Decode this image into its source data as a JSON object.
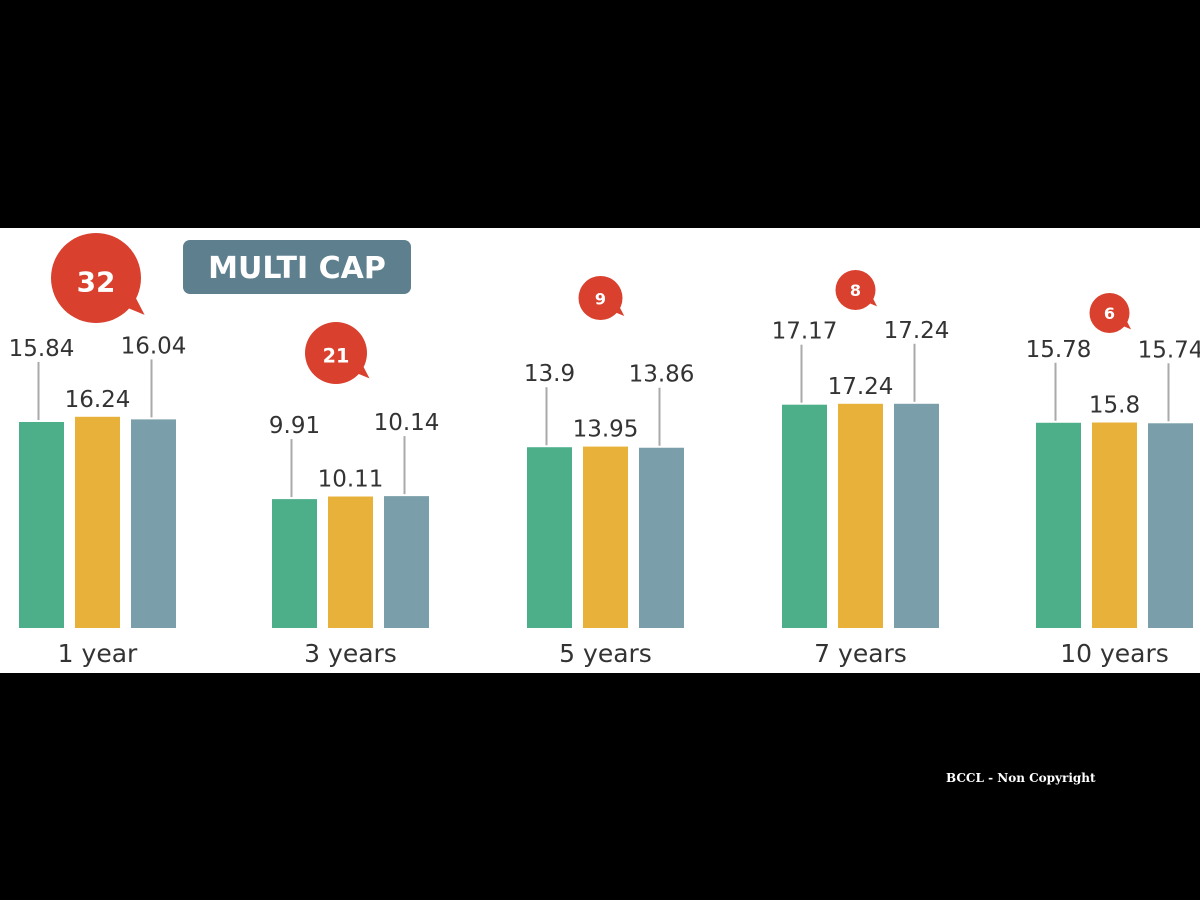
{
  "title": "MULTI CAP",
  "watermark": "BCCL - Non Copyright",
  "chart_data": {
    "type": "bar",
    "title": "MULTI CAP",
    "categories": [
      "1 year",
      "3 years",
      "5 years",
      "7 years",
      "10 years"
    ],
    "series": [
      {
        "values": [
          15.84,
          9.91,
          13.9,
          17.17,
          15.78
        ]
      },
      {
        "values": [
          16.24,
          10.11,
          13.95,
          17.24,
          15.8
        ]
      },
      {
        "values": [
          16.04,
          10.14,
          13.86,
          17.24,
          15.74
        ]
      }
    ],
    "value_labels": [
      [
        "15.84",
        "9.91",
        "13.9",
        "17.17",
        "15.78"
      ],
      [
        "16.24",
        "10.11",
        "13.95",
        "17.24",
        "15.8"
      ],
      [
        "16.04",
        "10.14",
        "13.86",
        "17.24",
        "15.74"
      ]
    ],
    "badges": [
      "32",
      "21",
      "9",
      "8",
      "6"
    ],
    "colors": [
      "#4dae8a",
      "#e8b23a",
      "#7a9eaa"
    ],
    "badge_color": "#d9412e",
    "title_box_color": "#5e7f8e",
    "ylim": [
      0,
      17.3
    ],
    "grid": false,
    "legend": "none"
  }
}
